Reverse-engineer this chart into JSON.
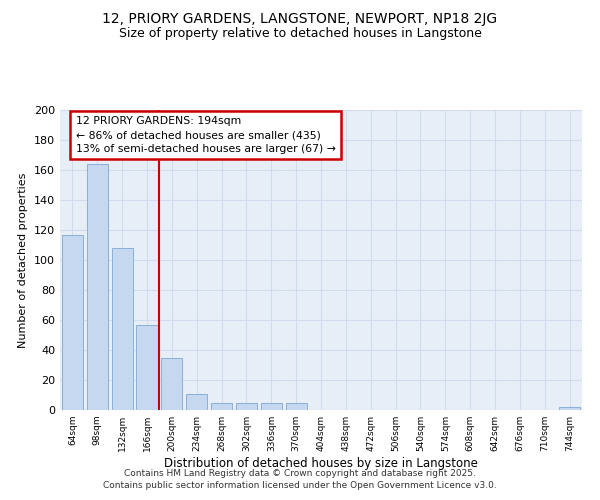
{
  "title1": "12, PRIORY GARDENS, LANGSTONE, NEWPORT, NP18 2JG",
  "title2": "Size of property relative to detached houses in Langstone",
  "xlabel": "Distribution of detached houses by size in Langstone",
  "ylabel": "Number of detached properties",
  "categories": [
    "64sqm",
    "98sqm",
    "132sqm",
    "166sqm",
    "200sqm",
    "234sqm",
    "268sqm",
    "302sqm",
    "336sqm",
    "370sqm",
    "404sqm",
    "438sqm",
    "472sqm",
    "506sqm",
    "540sqm",
    "574sqm",
    "608sqm",
    "642sqm",
    "676sqm",
    "710sqm",
    "744sqm"
  ],
  "values": [
    117,
    164,
    108,
    57,
    35,
    11,
    5,
    5,
    5,
    5,
    0,
    0,
    0,
    0,
    0,
    0,
    0,
    0,
    0,
    0,
    2
  ],
  "bar_color": "#c5d8f0",
  "bar_edge_color": "#8ab0d8",
  "grid_color": "#d0dced",
  "bg_color": "#e8eef8",
  "red_line_index": 4,
  "annotation_text": "12 PRIORY GARDENS: 194sqm\n← 86% of detached houses are smaller (435)\n13% of semi-detached houses are larger (67) →",
  "annotation_box_color": "#ffffff",
  "annotation_edge_color": "#cc0000",
  "annotation_text_color": "#000000",
  "red_line_color": "#cc0000",
  "footer1": "Contains HM Land Registry data © Crown copyright and database right 2025.",
  "footer2": "Contains public sector information licensed under the Open Government Licence v3.0.",
  "ylim": [
    0,
    200
  ],
  "yticks": [
    0,
    20,
    40,
    60,
    80,
    100,
    120,
    140,
    160,
    180,
    200
  ]
}
